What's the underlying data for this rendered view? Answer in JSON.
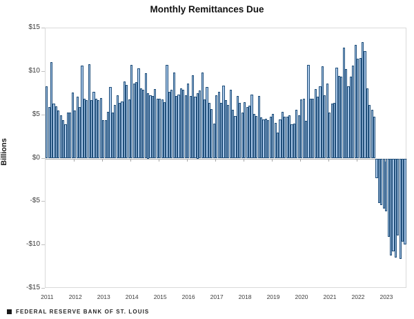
{
  "title": "Monthly Remittances Due",
  "source_label": "FEDERAL RESERVE BANK OF ST. LOUIS",
  "chart_data": {
    "type": "bar",
    "title": "Monthly Remittances Due",
    "xlabel": "",
    "ylabel": "Billions",
    "ylim": [
      -15,
      15
    ],
    "y_tick_values": [
      15,
      10,
      5,
      0,
      -5,
      -10,
      -15
    ],
    "y_tick_labels": [
      "$15",
      "$10",
      "$5",
      "$0",
      "-$5",
      "-$10",
      "-$15"
    ],
    "x_tick_labels": [
      "2011",
      "2012",
      "2013",
      "2014",
      "2015",
      "2016",
      "2017",
      "2018",
      "2019",
      "2020",
      "2021",
      "2022",
      "2023"
    ],
    "grid": false,
    "legend": "none",
    "bar_fill_color": "#a9c7e9",
    "bar_border_color": "#1f4e79",
    "start_month": "2011-01",
    "frequency": "monthly",
    "units": "Billions of U.S. Dollars",
    "series": [
      {
        "name": "Monthly Remittances Due",
        "values": [
          8.3,
          5.9,
          11.1,
          6.3,
          6.0,
          5.5,
          5.0,
          4.4,
          3.9,
          5.3,
          5.3,
          7.6,
          5.5,
          7.1,
          5.9,
          10.7,
          6.9,
          6.7,
          10.9,
          6.7,
          7.7,
          6.9,
          6.7,
          7.0,
          4.4,
          4.4,
          5.4,
          8.2,
          5.3,
          6.2,
          7.3,
          6.4,
          6.6,
          8.9,
          8.5,
          6.8,
          10.8,
          8.6,
          8.8,
          10.4,
          8.1,
          7.9,
          9.8,
          7.5,
          7.3,
          7.2,
          8.0,
          6.9,
          6.9,
          6.8,
          6.5,
          10.8,
          7.7,
          7.9,
          9.9,
          7.2,
          7.4,
          8.1,
          7.9,
          7.3,
          8.6,
          7.2,
          9.6,
          7.1,
          7.5,
          7.8,
          9.9,
          6.8,
          8.2,
          6.4,
          5.7,
          4.0,
          7.3,
          7.7,
          6.4,
          8.4,
          6.7,
          6.2,
          7.9,
          5.6,
          4.9,
          7.2,
          6.4,
          5.3,
          6.5,
          5.9,
          6.1,
          7.4,
          5.1,
          4.9,
          7.2,
          4.7,
          4.5,
          4.6,
          4.4,
          4.8,
          5.1,
          4.1,
          3.0,
          4.5,
          5.4,
          4.8,
          4.8,
          5.0,
          3.9,
          4.0,
          5.6,
          5.0,
          6.8,
          6.9,
          4.3,
          10.8,
          6.9,
          6.9,
          8.0,
          7.1,
          8.3,
          10.6,
          7.3,
          8.6,
          5.3,
          6.3,
          6.4,
          10.5,
          9.5,
          9.4,
          12.8,
          10.3,
          8.3,
          9.4,
          10.7,
          13.1,
          11.5,
          11.6,
          13.4,
          12.4,
          8.1,
          6.2,
          5.6,
          4.8,
          -2.3,
          -5.1,
          -5.4,
          -5.8,
          -6.1,
          -9.0,
          -11.2,
          -10.7,
          -11.4,
          -8.9,
          -11.6,
          -9.6,
          -9.9
        ]
      }
    ]
  }
}
